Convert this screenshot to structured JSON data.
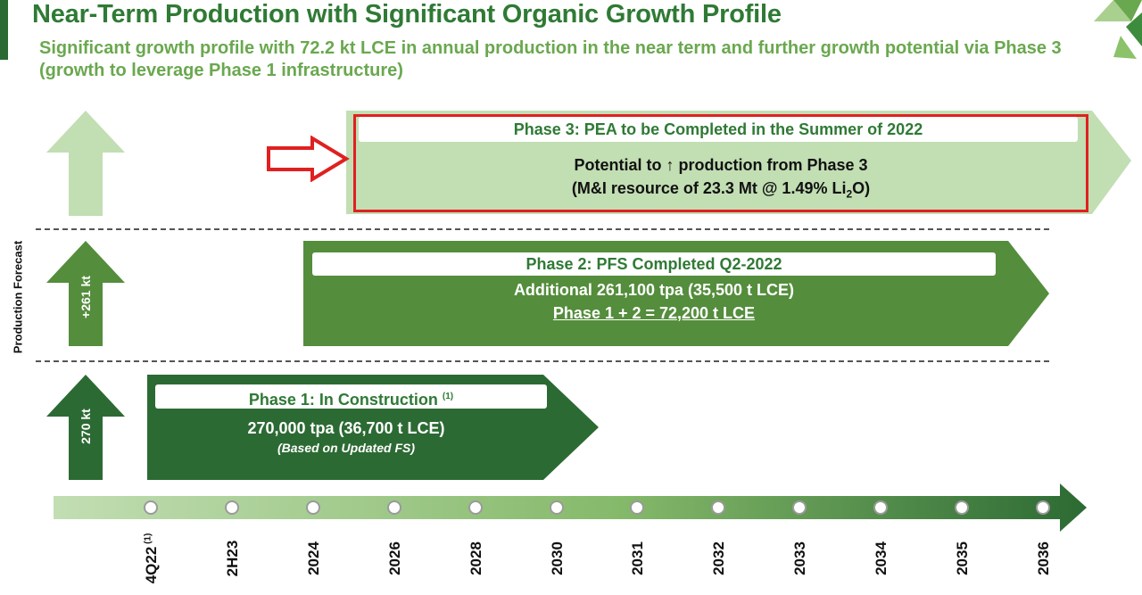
{
  "header": {
    "title": "Near-Term Production with Significant Organic Growth Profile",
    "subtitle": "Significant growth profile with 72.2 kt LCE in annual production in the near term and further growth potential via Phase 3 (growth to leverage Phase 1 infrastructure)"
  },
  "y_axis_label": "Production Forecast",
  "colors": {
    "dark_green": "#2c6a33",
    "mid_green": "#548d3c",
    "light_green": "#c2deb3",
    "highlight_red": "#e02020"
  },
  "phase3": {
    "title": "Phase 3: PEA to be Completed in the Summer of 2022",
    "line1_prefix": "Potential to",
    "line1_arrow": "↑",
    "line1_suffix": "production from Phase 3",
    "line2_prefix": "(M&I resource of 23.3 Mt @ 1.49% Li",
    "line2_sub": "2",
    "line2_suffix": "O)"
  },
  "phase2": {
    "title": "Phase 2: PFS Completed Q2-2022",
    "line1": "Additional 261,100 tpa (35,500 t LCE)",
    "line2": "Phase 1 + 2 = 72,200 t LCE",
    "side_label": "+261 kt"
  },
  "phase1": {
    "title": "Phase 1: In Construction",
    "title_footnote": "(1)",
    "line1": "270,000 tpa (36,700 t LCE)",
    "line2": "(Based on Updated FS)",
    "side_label": "270 kt"
  },
  "timeline": {
    "ticks": [
      "4Q22",
      "2H23",
      "2024",
      "2026",
      "2028",
      "2030",
      "2031",
      "2032",
      "2033",
      "2034",
      "2035",
      "2036"
    ],
    "first_tick_footnote": "(1)"
  }
}
